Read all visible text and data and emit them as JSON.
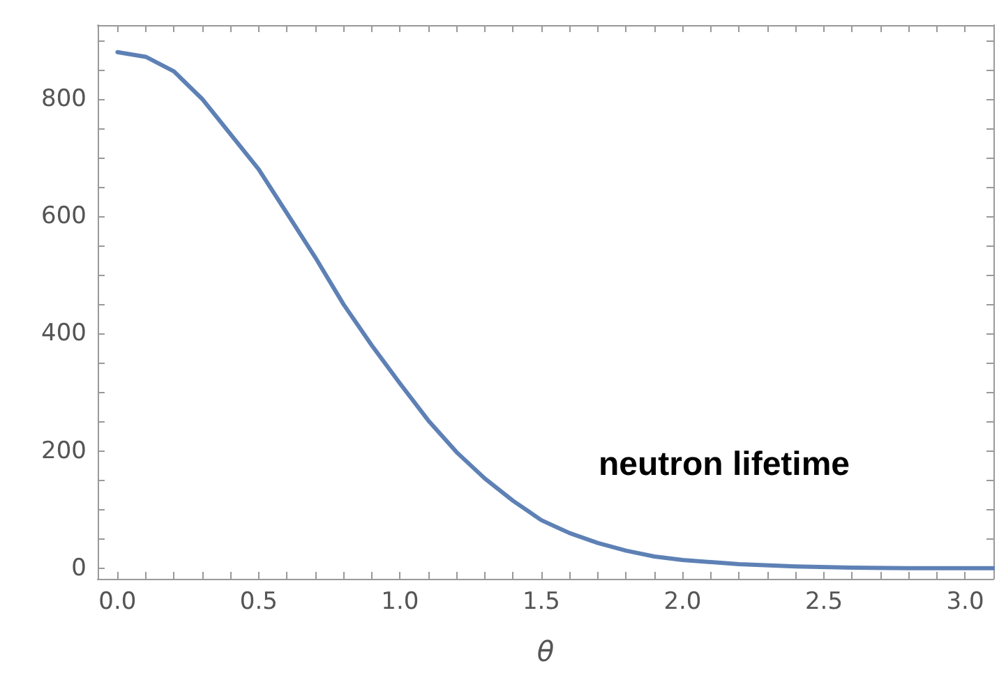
{
  "chart_data": {
    "type": "line",
    "xlabel": "θ",
    "annotations": [
      "neutron lifetime"
    ],
    "x": [
      0,
      0.1,
      0.2,
      0.3,
      0.4,
      0.5,
      0.6,
      0.7,
      0.8,
      0.9,
      1.0,
      1.1,
      1.2,
      1.3,
      1.4,
      1.5,
      1.6,
      1.7,
      1.8,
      1.9,
      2.0,
      2.2,
      2.4,
      2.6,
      2.8,
      3.0,
      3.1
    ],
    "series": [
      {
        "color": "#5e81b5",
        "values": [
          880,
          872,
          847,
          800,
          740,
          680,
          605,
          530,
          450,
          380,
          315,
          252,
          198,
          153,
          115,
          82,
          60,
          43,
          30,
          20,
          14,
          7,
          3,
          1,
          0,
          0,
          0
        ]
      }
    ],
    "xlim": [
      -0.07,
      3.1
    ],
    "ylim": [
      -18,
      926
    ],
    "xticks": [
      {
        "value": 0,
        "label": "0.0"
      },
      {
        "value": 0.1,
        "label": null
      },
      {
        "value": 0.2,
        "label": null
      },
      {
        "value": 0.3,
        "label": null
      },
      {
        "value": 0.4,
        "label": null
      },
      0.5,
      {
        "value": 0.6,
        "label": null
      },
      {
        "value": 0.7,
        "label": null
      },
      {
        "value": 0.8,
        "label": null
      },
      {
        "value": 0.9,
        "label": null
      },
      {
        "value": 1,
        "label": "1.0"
      },
      {
        "value": 1.1,
        "label": null
      },
      {
        "value": 1.2,
        "label": null
      },
      {
        "value": 1.3,
        "label": null
      },
      {
        "value": 1.4,
        "label": null
      },
      1.5,
      {
        "value": 1.6,
        "label": null
      },
      {
        "value": 1.7,
        "label": null
      },
      {
        "value": 1.8,
        "label": null
      },
      {
        "value": 1.9,
        "label": null
      },
      {
        "value": 2,
        "label": "2.0"
      },
      {
        "value": 2.1,
        "label": null
      },
      {
        "value": 2.2,
        "label": null
      },
      {
        "value": 2.3,
        "label": null
      },
      {
        "value": 2.4,
        "label": null
      },
      2.5,
      {
        "value": 2.6,
        "label": null
      },
      {
        "value": 2.7,
        "label": null
      },
      {
        "value": 2.8,
        "label": null
      },
      {
        "value": 2.9,
        "label": null
      },
      {
        "value": 3,
        "label": "3.0"
      }
    ],
    "yticks": [
      0,
      {
        "value": 50,
        "label": null
      },
      {
        "value": 100,
        "label": null
      },
      {
        "value": 150,
        "label": null
      },
      200,
      {
        "value": 250,
        "label": null
      },
      {
        "value": 300,
        "label": null
      },
      {
        "value": 350,
        "label": null
      },
      400,
      {
        "value": 450,
        "label": null
      },
      {
        "value": 500,
        "label": null
      },
      {
        "value": 550,
        "label": null
      },
      600,
      {
        "value": 650,
        "label": null
      },
      {
        "value": 700,
        "label": null
      },
      {
        "value": 750,
        "label": null
      },
      800,
      {
        "value": 850,
        "label": null
      },
      {
        "value": 900,
        "label": null
      }
    ],
    "grid": false,
    "marker": "none",
    "line_style": "solid"
  }
}
